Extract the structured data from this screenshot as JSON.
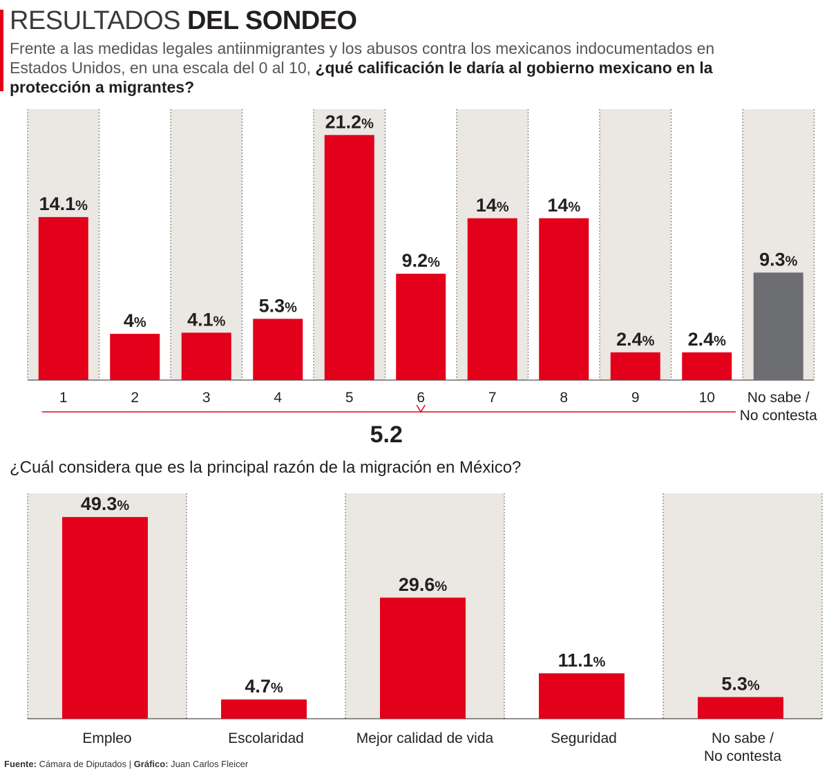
{
  "header": {
    "title_light": "RESULTADOS",
    "title_bold": "DEL SONDEO",
    "subtitle_lead": "Frente a las medidas legales antiinmigrantes y los abusos contra los mexicanos indocumentados en Estados Unidos, en una escala del 0 al 10,",
    "subtitle_question": "¿qué calificación le daría al gobierno mexicano en la protección a migrantes?"
  },
  "colors": {
    "accent": "#e2001a",
    "bar": "#e2001a",
    "no_answer_bar": "#6d6e71",
    "column_shade": "#ebe7e3",
    "divider": "#555555"
  },
  "chart_data": [
    {
      "type": "bar",
      "title": "¿qué calificación le daría al gobierno mexicano en la protección a migrantes?",
      "categories": [
        "1",
        "2",
        "3",
        "4",
        "5",
        "6",
        "7",
        "8",
        "9",
        "10",
        "No sabe / No contesta"
      ],
      "values": [
        14.1,
        4,
        4.1,
        5.3,
        21.2,
        9.2,
        14,
        14,
        2.4,
        2.4,
        9.3
      ],
      "value_labels": [
        "14.1",
        "4",
        "4.1",
        "5.3",
        "21.2",
        "9.2",
        "14",
        "14",
        "2.4",
        "2.4",
        "9.3"
      ],
      "unit": "%",
      "average_label": "5.2",
      "ylim": [
        0,
        22
      ],
      "grid": false,
      "shaded_columns": [
        0,
        2,
        4,
        6,
        8,
        10
      ]
    },
    {
      "type": "bar",
      "title": "¿Cuál considera que es la principal razón de la migración en México?",
      "categories": [
        "Empleo",
        "Escolaridad",
        "Mejor calidad de vida",
        "Seguridad",
        "No sabe / No contesta"
      ],
      "values": [
        49.3,
        4.7,
        29.6,
        11.1,
        5.3
      ],
      "value_labels": [
        "49.3",
        "4.7",
        "29.6",
        "11.1",
        "5.3"
      ],
      "unit": "%",
      "ylim": [
        0,
        50
      ],
      "grid": false,
      "shaded_columns": [
        0,
        2,
        4
      ]
    }
  ],
  "footer": {
    "source_label": "Fuente:",
    "source_value": "Cámara de Diputados",
    "separator": "|",
    "credit_label": "Gráfico:",
    "credit_value": "Juan Carlos Fleicer"
  }
}
